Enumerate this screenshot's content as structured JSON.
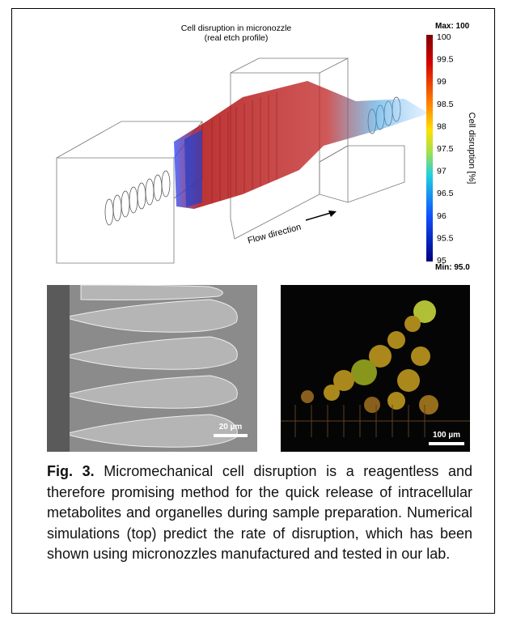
{
  "figure": {
    "simulation": {
      "title": "Cell disruption in micronozzle",
      "subtitle": "(real etch profile)",
      "flow_label": "Flow direction",
      "colorbar": {
        "max_label": "Max: 100",
        "min_label": "Min: 95.0",
        "axis_label": "Cell disruption [%]",
        "ticks": [
          "100",
          "99.5",
          "99",
          "98.5",
          "98",
          "97.5",
          "97",
          "96.5",
          "96",
          "95.5",
          "95"
        ]
      }
    },
    "micrographs": [
      {
        "scale_bar": "20 µm"
      },
      {
        "scale_bar": "100 µm"
      }
    ],
    "caption": {
      "label": "Fig. 3.",
      "text": "Micromechanical cell disruption is a reagentless and therefore promising method for the quick release of intracellular metabolites and organelles during sample preparation. Numerical simulations (top) predict the rate of disruption, which has been shown using micronozzles manufactured and tested in our lab."
    }
  }
}
